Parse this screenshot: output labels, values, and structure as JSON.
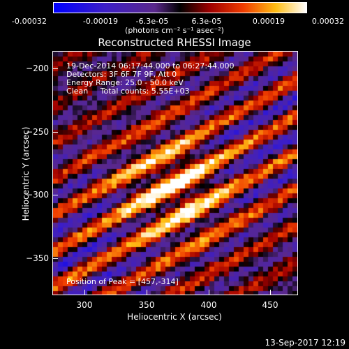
{
  "colorbar": {
    "ticks": [
      "-0.00032",
      "-0.00019",
      "-6.3e-05",
      "6.3e-05",
      "0.00019",
      "0.00032"
    ],
    "units": "(photons cm⁻² s⁻¹ asec⁻²)"
  },
  "plot": {
    "title": "Reconstructed RHESSI Image",
    "info_time": "19-Dec-2014 06:17:44.000 to 06:27:44.000",
    "info_detectors": "Detectors: 3F 6F 7F 9F, Att 0",
    "info_energy": "Energy Range: 25.0 - 50.0 keV",
    "info_clean": "Clean     Total counts: 5.55E+03",
    "peak": "Position of Peak = [457,-314]",
    "xlabel": "Heliocentric X (arcsec)",
    "ylabel": "Heliocentric Y (arcsec)",
    "timestamp": "13-Sep-2017 12:19"
  },
  "chart_data": {
    "type": "heatmap",
    "title": "Reconstructed RHESSI Image",
    "xlabel": "Heliocentric X (arcsec)",
    "ylabel": "Heliocentric Y (arcsec)",
    "xlim": [
      274,
      468
    ],
    "ylim": [
      -378,
      -187
    ],
    "x_ticks": [
      300,
      350,
      400,
      450
    ],
    "y_ticks": [
      -200,
      -250,
      -300,
      -350
    ],
    "x_tick_labels": [
      "300",
      "350",
      "400",
      "450"
    ],
    "y_tick_labels": [
      "−200",
      "−250",
      "−300",
      "−350"
    ],
    "colorbar_range": [
      -0.00032,
      0.00032
    ],
    "colormap": "hot (black-red-orange-yellow-white) with negative values in blue-purple",
    "peak_position": [
      457,
      -314
    ],
    "energy_range_keV": [
      25.0,
      50.0
    ],
    "total_counts": 5550
  }
}
